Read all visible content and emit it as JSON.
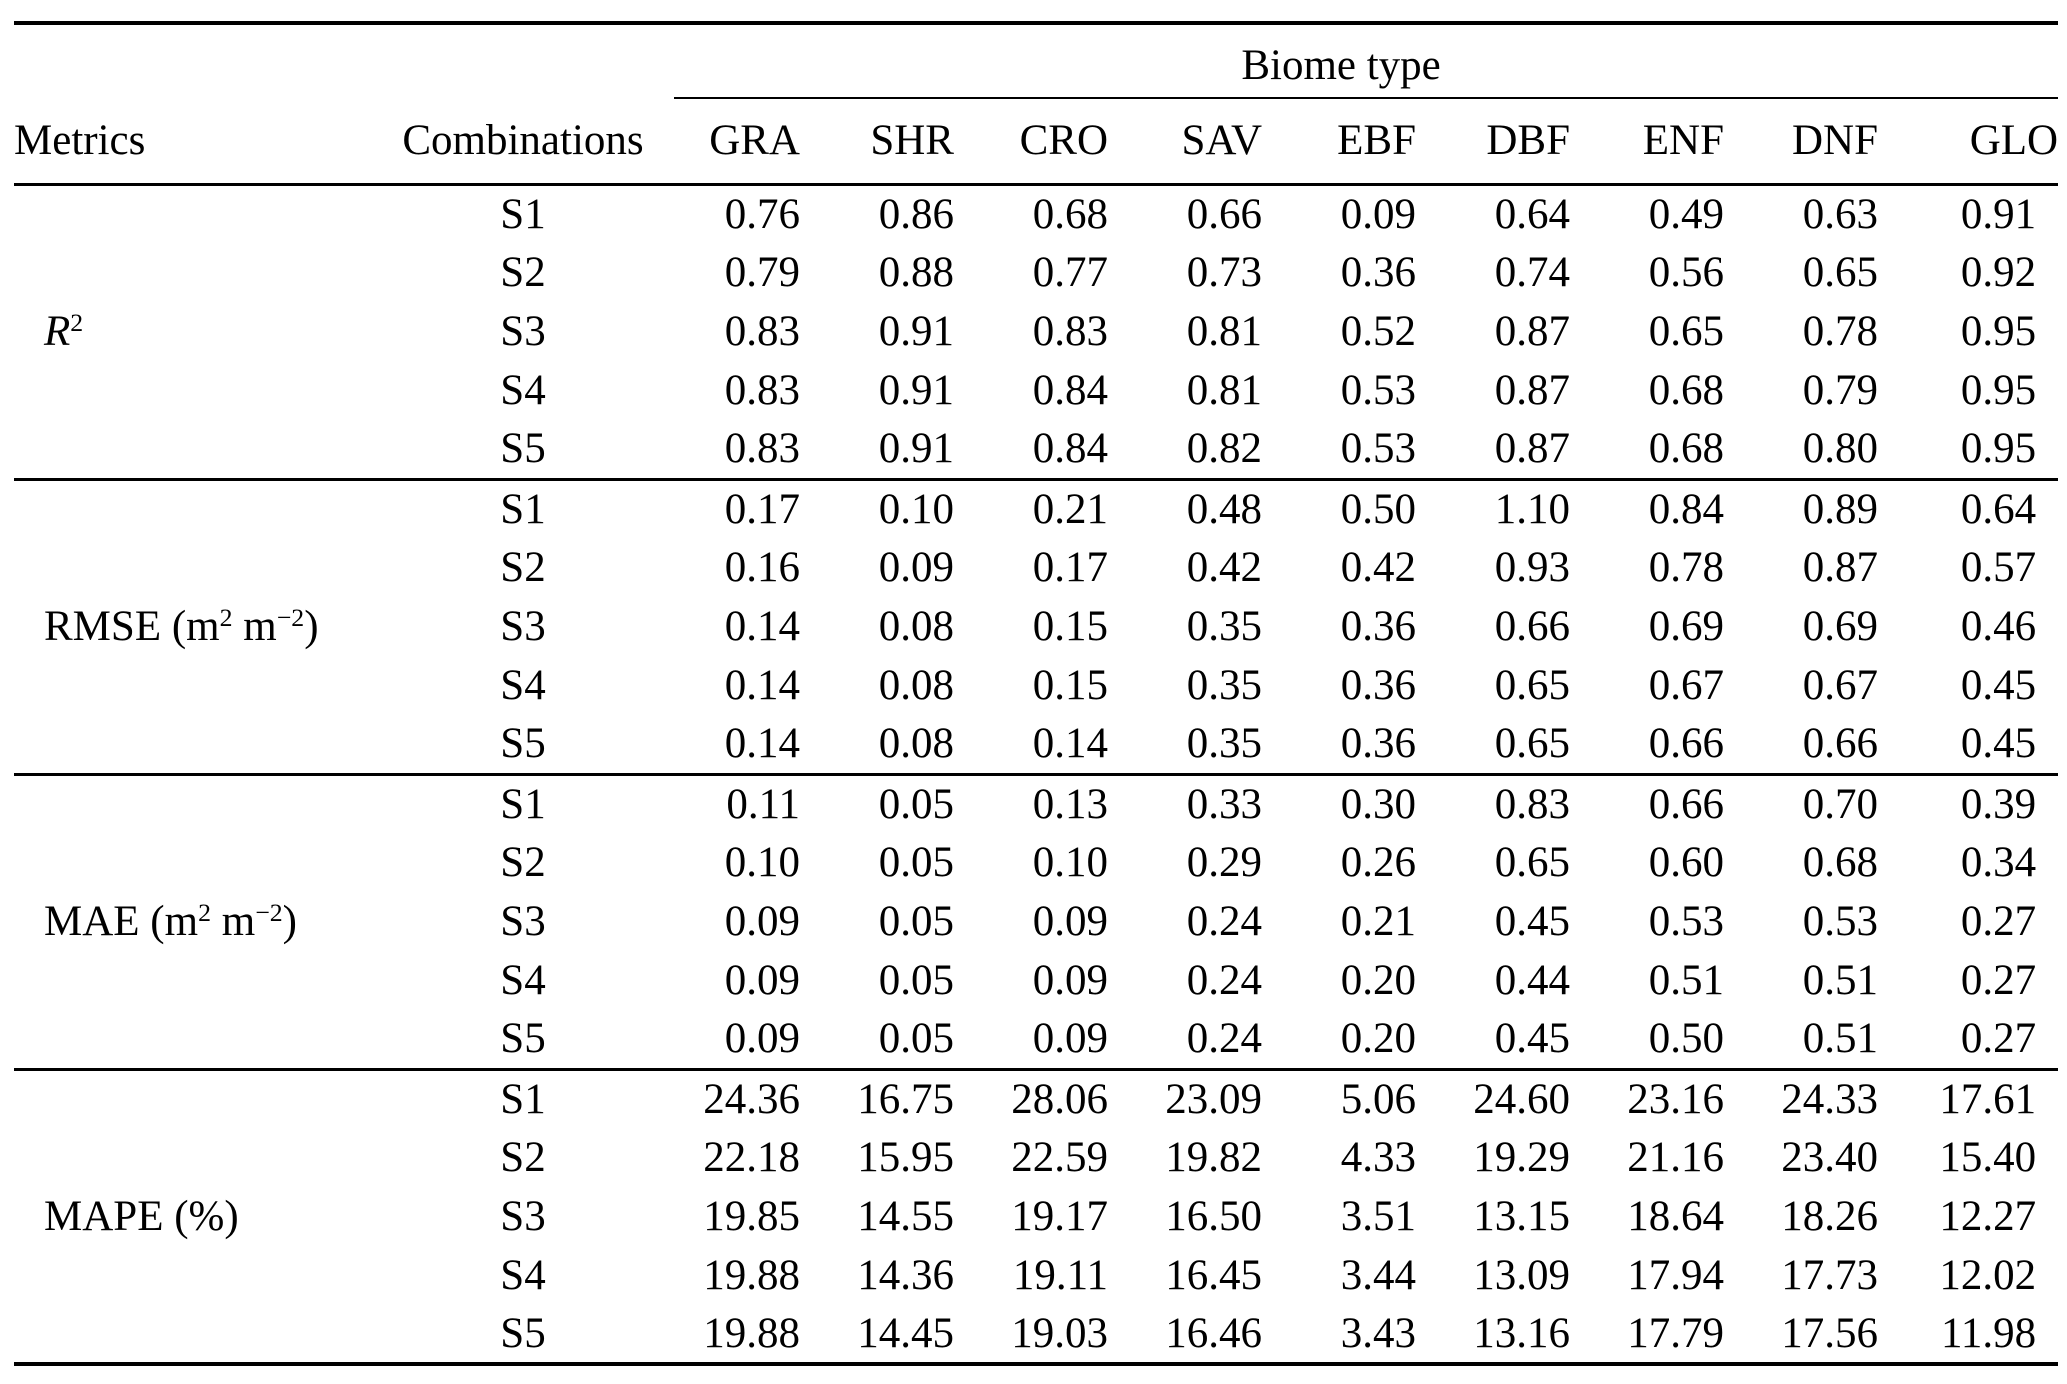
{
  "table": {
    "group_header": "Biome type",
    "metrics_header": "Metrics",
    "combinations_header": "Combinations",
    "biome_columns": [
      "GRA",
      "SHR",
      "CRO",
      "SAV",
      "EBF",
      "DBF",
      "ENF",
      "DNF",
      "GLO"
    ],
    "sections": [
      {
        "metric_id": "r2",
        "metric_parts": [
          {
            "text": "R",
            "italic": true
          },
          {
            "text": "2",
            "sup": true
          }
        ],
        "rows": [
          {
            "combination": "S1",
            "values": [
              "0.76",
              "0.86",
              "0.68",
              "0.66",
              "0.09",
              "0.64",
              "0.49",
              "0.63",
              "0.91"
            ]
          },
          {
            "combination": "S2",
            "values": [
              "0.79",
              "0.88",
              "0.77",
              "0.73",
              "0.36",
              "0.74",
              "0.56",
              "0.65",
              "0.92"
            ]
          },
          {
            "combination": "S3",
            "values": [
              "0.83",
              "0.91",
              "0.83",
              "0.81",
              "0.52",
              "0.87",
              "0.65",
              "0.78",
              "0.95"
            ]
          },
          {
            "combination": "S4",
            "values": [
              "0.83",
              "0.91",
              "0.84",
              "0.81",
              "0.53",
              "0.87",
              "0.68",
              "0.79",
              "0.95"
            ]
          },
          {
            "combination": "S5",
            "values": [
              "0.83",
              "0.91",
              "0.84",
              "0.82",
              "0.53",
              "0.87",
              "0.68",
              "0.80",
              "0.95"
            ]
          }
        ]
      },
      {
        "metric_id": "rmse",
        "metric_parts": [
          {
            "text": "RMSE (m"
          },
          {
            "text": "2",
            "sup": true
          },
          {
            "text": " m"
          },
          {
            "text": "−2",
            "sup": true
          },
          {
            "text": ")"
          }
        ],
        "rows": [
          {
            "combination": "S1",
            "values": [
              "0.17",
              "0.10",
              "0.21",
              "0.48",
              "0.50",
              "1.10",
              "0.84",
              "0.89",
              "0.64"
            ]
          },
          {
            "combination": "S2",
            "values": [
              "0.16",
              "0.09",
              "0.17",
              "0.42",
              "0.42",
              "0.93",
              "0.78",
              "0.87",
              "0.57"
            ]
          },
          {
            "combination": "S3",
            "values": [
              "0.14",
              "0.08",
              "0.15",
              "0.35",
              "0.36",
              "0.66",
              "0.69",
              "0.69",
              "0.46"
            ]
          },
          {
            "combination": "S4",
            "values": [
              "0.14",
              "0.08",
              "0.15",
              "0.35",
              "0.36",
              "0.65",
              "0.67",
              "0.67",
              "0.45"
            ]
          },
          {
            "combination": "S5",
            "values": [
              "0.14",
              "0.08",
              "0.14",
              "0.35",
              "0.36",
              "0.65",
              "0.66",
              "0.66",
              "0.45"
            ]
          }
        ]
      },
      {
        "metric_id": "mae",
        "metric_parts": [
          {
            "text": "MAE (m"
          },
          {
            "text": "2",
            "sup": true
          },
          {
            "text": " m"
          },
          {
            "text": "−2",
            "sup": true
          },
          {
            "text": ")"
          }
        ],
        "rows": [
          {
            "combination": "S1",
            "values": [
              "0.11",
              "0.05",
              "0.13",
              "0.33",
              "0.30",
              "0.83",
              "0.66",
              "0.70",
              "0.39"
            ]
          },
          {
            "combination": "S2",
            "values": [
              "0.10",
              "0.05",
              "0.10",
              "0.29",
              "0.26",
              "0.65",
              "0.60",
              "0.68",
              "0.34"
            ]
          },
          {
            "combination": "S3",
            "values": [
              "0.09",
              "0.05",
              "0.09",
              "0.24",
              "0.21",
              "0.45",
              "0.53",
              "0.53",
              "0.27"
            ]
          },
          {
            "combination": "S4",
            "values": [
              "0.09",
              "0.05",
              "0.09",
              "0.24",
              "0.20",
              "0.44",
              "0.51",
              "0.51",
              "0.27"
            ]
          },
          {
            "combination": "S5",
            "values": [
              "0.09",
              "0.05",
              "0.09",
              "0.24",
              "0.20",
              "0.45",
              "0.50",
              "0.51",
              "0.27"
            ]
          }
        ]
      },
      {
        "metric_id": "mape",
        "metric_parts": [
          {
            "text": "MAPE (%)"
          }
        ],
        "rows": [
          {
            "combination": "S1",
            "values": [
              "24.36",
              "16.75",
              "28.06",
              "23.09",
              "5.06",
              "24.60",
              "23.16",
              "24.33",
              "17.61"
            ]
          },
          {
            "combination": "S2",
            "values": [
              "22.18",
              "15.95",
              "22.59",
              "19.82",
              "4.33",
              "19.29",
              "21.16",
              "23.40",
              "15.40"
            ]
          },
          {
            "combination": "S3",
            "values": [
              "19.85",
              "14.55",
              "19.17",
              "16.50",
              "3.51",
              "13.15",
              "18.64",
              "18.26",
              "12.27"
            ]
          },
          {
            "combination": "S4",
            "values": [
              "19.88",
              "14.36",
              "19.11",
              "16.45",
              "3.44",
              "13.09",
              "17.94",
              "17.73",
              "12.02"
            ]
          },
          {
            "combination": "S5",
            "values": [
              "19.88",
              "14.45",
              "19.03",
              "16.46",
              "3.43",
              "13.16",
              "17.79",
              "17.56",
              "11.98"
            ]
          }
        ]
      }
    ]
  },
  "colors": {
    "text": "#000000",
    "background": "#ffffff",
    "rule": "#000000"
  }
}
